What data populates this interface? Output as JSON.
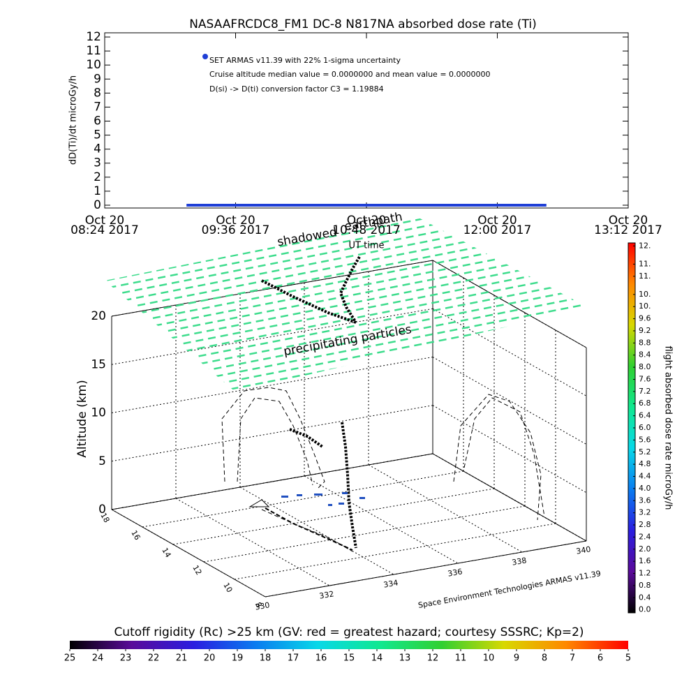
{
  "chart_data": [
    {
      "type": "line",
      "title": "NASAAFRCDC8_FM1 DC-8   N817NA absorbed dose rate (Ti)",
      "y_label": "dD(Ti)/dt microGy/h",
      "x_label": "UT time",
      "x": [
        "2017-10-20T09:09",
        "2017-10-20T12:27"
      ],
      "series": [
        {
          "name": "SET ARMAS v11.39 with 22% 1-sigma uncertainty",
          "color": "#1f3fd6",
          "values": [
            0,
            0
          ]
        }
      ],
      "annotations": [
        "Cruise altitude median value = 0.0000000 and mean value = 0.0000000",
        "D(si) -> D(ti) conversion factor C3 = 1.19884"
      ],
      "xlim": [
        "2017-10-20T08:24",
        "2017-10-20T13:12"
      ],
      "xticks": [
        {
          "value": "2017-10-20T08:24",
          "label": [
            "Oct 20",
            "08:24 2017"
          ]
        },
        {
          "value": "2017-10-20T09:36",
          "label": [
            "Oct 20",
            "09:36 2017"
          ]
        },
        {
          "value": "2017-10-20T10:48",
          "label": [
            "Oct 20",
            "10:48 2017"
          ]
        },
        {
          "value": "2017-10-20T12:00",
          "label": [
            "Oct 20",
            "12:00 2017"
          ]
        },
        {
          "value": "2017-10-20T13:12",
          "label": [
            "Oct 20",
            "13:12 2017"
          ]
        }
      ],
      "ylim": [
        -0.2,
        12.3
      ],
      "yticks": [
        0,
        1,
        2,
        3,
        4,
        5,
        6,
        7,
        8,
        9,
        10,
        11,
        12
      ]
    },
    {
      "type": "scatter3d",
      "z_label": "Altitude (km)",
      "zlim": [
        0,
        20
      ],
      "zticks": [
        0,
        5,
        10,
        15,
        20
      ],
      "xlim": [
        330,
        340
      ],
      "xticks": [
        330,
        332,
        334,
        336,
        338,
        340
      ],
      "ylim": [
        18,
        8
      ],
      "yticks": [
        18,
        16,
        14,
        12,
        10,
        8
      ],
      "annotations": [
        "shadowed",
        "earthpath",
        "precipitating particles"
      ],
      "credit": "Space Environment Technologies ARMAS v11.39"
    },
    {
      "type": "colorbar",
      "orientation": "vertical",
      "title": "flight absorbed dose rate microGy/h",
      "colors": [
        "#000000",
        "#5a0a9a",
        "#2a1ee0",
        "#0a7cf0",
        "#08d8e8",
        "#10e890",
        "#30d030",
        "#d8d800",
        "#ff8800",
        "#ff0000"
      ],
      "ylim": [
        -0.1,
        12.1
      ],
      "yticks": [
        {
          "value": 0,
          "label": "0.0"
        },
        0.4,
        0.8,
        1.2,
        1.6,
        {
          "value": 2,
          "label": "2.0"
        },
        2.4,
        2.8,
        3.2,
        3.6,
        {
          "value": 4,
          "label": "4.0"
        },
        4.4,
        4.8,
        5.2,
        5.6,
        {
          "value": 6,
          "label": "6.0"
        },
        6.4,
        6.8,
        7.2,
        7.6,
        {
          "value": 8,
          "label": "8.0"
        },
        8.4,
        8.8,
        9.2,
        9.6,
        {
          "value": 10,
          "label": "10."
        },
        {
          "value": 10.4,
          "label": "10."
        },
        {
          "value": 11,
          "label": "11."
        },
        {
          "value": 11.4,
          "label": "11."
        },
        {
          "value": 12,
          "label": "12."
        }
      ]
    },
    {
      "type": "colorbar",
      "orientation": "horizontal",
      "title": "Cutoff rigidity (Rc) >25 km (GV: red = greatest hazard; courtesy SSSRC; Kp=2)",
      "colors": [
        "#000000",
        "#5a0a9a",
        "#2a1ee0",
        "#0a7cf0",
        "#08d8e8",
        "#10e890",
        "#30d030",
        "#d8d800",
        "#ff8800",
        "#ff0000"
      ],
      "xlim": [
        25,
        5
      ],
      "xticks": [
        25,
        24,
        23,
        22,
        21,
        20,
        19,
        18,
        17,
        16,
        15,
        14,
        13,
        12,
        11,
        10,
        9,
        8,
        7,
        6,
        5
      ]
    }
  ]
}
